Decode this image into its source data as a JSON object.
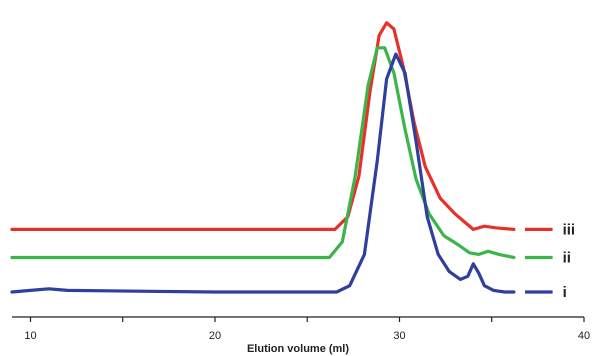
{
  "chart_data": {
    "type": "line",
    "title": "",
    "xlabel": "Elution volume (ml)",
    "ylabel": "",
    "xlim": [
      9,
      40
    ],
    "ylim": [
      0,
      1
    ],
    "x_ticks": [
      10,
      15,
      20,
      25,
      30,
      35,
      40
    ],
    "x_tick_labels": [
      "10",
      "",
      "20",
      "",
      "30",
      "",
      "40"
    ],
    "grid": false,
    "legend": "none",
    "series": [
      {
        "name": "iii",
        "color": "#e8302a",
        "points": [
          [
            9,
            0.28
          ],
          [
            20,
            0.28
          ],
          [
            26.5,
            0.28
          ],
          [
            27.2,
            0.32
          ],
          [
            27.8,
            0.45
          ],
          [
            28.4,
            0.72
          ],
          [
            28.9,
            0.9
          ],
          [
            29.3,
            0.94
          ],
          [
            29.7,
            0.92
          ],
          [
            30.2,
            0.8
          ],
          [
            30.8,
            0.62
          ],
          [
            31.4,
            0.48
          ],
          [
            32.2,
            0.38
          ],
          [
            33,
            0.33
          ],
          [
            33.6,
            0.3
          ],
          [
            34,
            0.28
          ],
          [
            34.6,
            0.29
          ],
          [
            35.2,
            0.285
          ],
          [
            36.2,
            0.28
          ]
        ],
        "tail": [
          [
            36.8,
            0.28
          ],
          [
            38.3,
            0.28
          ]
        ]
      },
      {
        "name": "ii",
        "color": "#3bb54a",
        "points": [
          [
            9,
            0.19
          ],
          [
            20,
            0.19
          ],
          [
            26.2,
            0.19
          ],
          [
            26.9,
            0.24
          ],
          [
            27.6,
            0.45
          ],
          [
            28.3,
            0.74
          ],
          [
            28.8,
            0.86
          ],
          [
            29.2,
            0.86
          ],
          [
            29.7,
            0.78
          ],
          [
            30.3,
            0.6
          ],
          [
            30.9,
            0.44
          ],
          [
            31.6,
            0.33
          ],
          [
            32.4,
            0.26
          ],
          [
            33.2,
            0.23
          ],
          [
            33.8,
            0.205
          ],
          [
            34.3,
            0.2
          ],
          [
            34.8,
            0.21
          ],
          [
            35.4,
            0.2
          ],
          [
            36.2,
            0.19
          ]
        ],
        "tail": [
          [
            36.8,
            0.19
          ],
          [
            38.3,
            0.19
          ]
        ]
      },
      {
        "name": "i",
        "color": "#2e3f9e",
        "points": [
          [
            9,
            0.08
          ],
          [
            10,
            0.085
          ],
          [
            11,
            0.09
          ],
          [
            12,
            0.085
          ],
          [
            20,
            0.08
          ],
          [
            26.6,
            0.08
          ],
          [
            27.3,
            0.1
          ],
          [
            28.1,
            0.2
          ],
          [
            28.8,
            0.5
          ],
          [
            29.3,
            0.76
          ],
          [
            29.8,
            0.84
          ],
          [
            30.3,
            0.78
          ],
          [
            30.9,
            0.56
          ],
          [
            31.5,
            0.32
          ],
          [
            32.1,
            0.2
          ],
          [
            32.7,
            0.145
          ],
          [
            33.3,
            0.12
          ],
          [
            33.7,
            0.13
          ],
          [
            34,
            0.17
          ],
          [
            34.3,
            0.14
          ],
          [
            34.6,
            0.1
          ],
          [
            35.1,
            0.085
          ],
          [
            35.7,
            0.08
          ],
          [
            36.2,
            0.08
          ]
        ],
        "tail": [
          [
            36.8,
            0.08
          ],
          [
            38.3,
            0.08
          ]
        ]
      }
    ]
  }
}
